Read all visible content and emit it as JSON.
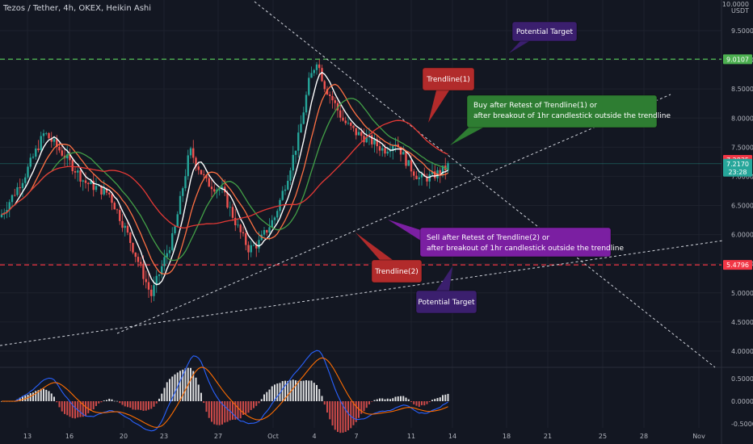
{
  "header": {
    "symbol_line": "Tezos / Tether, 4h, OKEX, Heikin Ashi",
    "axis_top_value": "10.0000",
    "currency": "USDT"
  },
  "chart_data": {
    "type": "candlestick",
    "title": "Tezos / Tether, 4h, OKEX, Heikin Ashi",
    "y_axis": {
      "unit": "USDT",
      "range": [
        3.75,
        10.0
      ],
      "ticks": [
        "4.0000",
        "4.5000",
        "5.0000",
        "5.5000",
        "6.0000",
        "6.5000",
        "7.0000",
        "7.5000",
        "8.0000",
        "8.5000",
        "9.0000",
        "9.5000"
      ]
    },
    "x_axis": {
      "ticks": [
        "13",
        "16",
        "20",
        "23",
        "27",
        "Oct",
        "4",
        "7",
        "11",
        "14",
        "18",
        "21",
        "25",
        "28",
        "Nov"
      ]
    },
    "price_labels": [
      {
        "value": 9.0107,
        "text": "9.0107",
        "color": "#4caf50"
      },
      {
        "value": 7.2835,
        "text": "7.2835",
        "color": "#f23645"
      },
      {
        "value": 7.217,
        "text": "7.2170",
        "sub": "23:28",
        "color": "#26a69a"
      },
      {
        "value": 5.4796,
        "text": "5.4796",
        "color": "#f23645"
      }
    ],
    "horizontal_levels": [
      {
        "value": 9.0107,
        "style": "dashed",
        "color": "#4caf50"
      },
      {
        "value": 5.4796,
        "style": "dashed",
        "color": "#f23645"
      }
    ],
    "annotations": [
      {
        "text": "Potential Target",
        "bg": "#3b1f6e"
      },
      {
        "text": "Trendline(1)",
        "bg": "#b22b2b"
      },
      {
        "text": "Buy after Retest of Trendline(1) or",
        "text2": "after breakout of 1hr candlestick outside the trendline",
        "bg": "#2e7d32"
      },
      {
        "text": "Sell after Retest of Trendline(2) or",
        "text2": "after breakout of 1hr candlestick outside the trendline",
        "bg": "#7b1fa2"
      },
      {
        "text": "Trendline(2)",
        "bg": "#b22b2b"
      },
      {
        "text": "Potential Target",
        "bg": "#3b1f6e"
      }
    ],
    "oscillator": {
      "type": "macd",
      "ticks": [
        "0.5000",
        "0.0000",
        "-0.5000"
      ],
      "range": [
        -0.55,
        0.7
      ]
    },
    "series": [
      {
        "name": "",
        "color": "#ffffff",
        "role": "ma-fast"
      },
      {
        "name": "",
        "color": "#ff7043",
        "role": "ma-2"
      },
      {
        "name": "",
        "color": "#43a047",
        "role": "ma-3"
      },
      {
        "name": "",
        "color": "#e53935",
        "role": "ma-slow"
      }
    ]
  }
}
